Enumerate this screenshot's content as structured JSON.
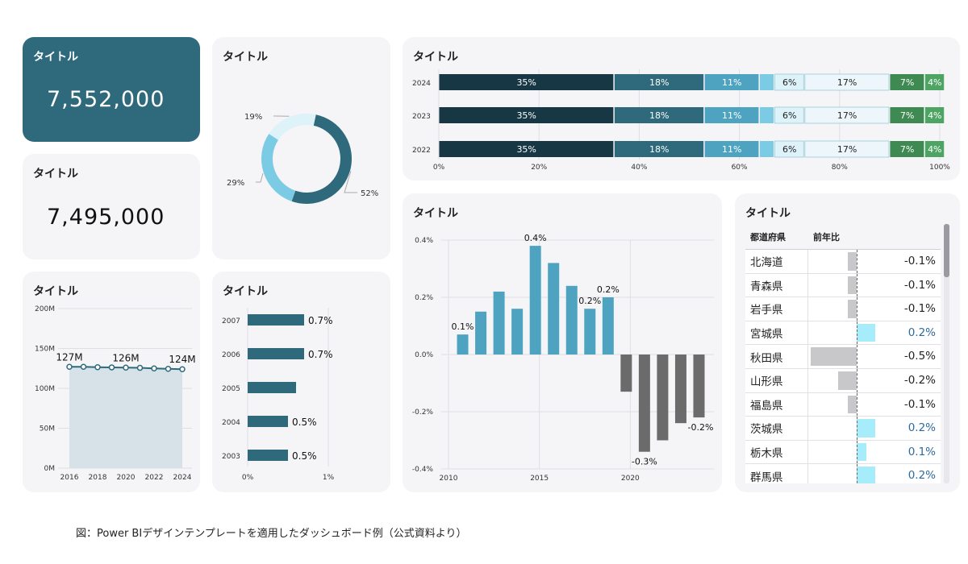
{
  "colors": {
    "dark_teal": "#173744",
    "teal": "#2e6a7c",
    "mid_blue": "#4da3c0",
    "light_blue": "#7ccbe4",
    "pale_blue": "#ddf2f9",
    "pale": "#edf7fb",
    "green": "#3e8a52",
    "green2": "#4ea463",
    "gray_bar": "#6b6b6b",
    "area_fill": "#d7e1e8"
  },
  "kpi1": {
    "title": "タイトル",
    "value": "7,552,000"
  },
  "kpi2": {
    "title": "タイトル",
    "value": "7,495,000"
  },
  "donut": {
    "title": "タイトル",
    "chart_data": {
      "type": "pie",
      "labels": [
        "",
        "",
        ""
      ],
      "values": [
        52,
        29,
        19
      ],
      "value_labels": [
        "52%",
        "29%",
        "19%"
      ]
    }
  },
  "stacked": {
    "title": "タイトル",
    "chart_data": {
      "type": "bar",
      "orientation": "horizontal",
      "stacked": true,
      "categories": [
        "2024",
        "2023",
        "2022"
      ],
      "segments": [
        {
          "value": 35,
          "label": "35%"
        },
        {
          "value": 18,
          "label": "18%"
        },
        {
          "value": 11,
          "label": "11%"
        },
        {
          "value": 3,
          "label": ""
        },
        {
          "value": 6,
          "label": "6%"
        },
        {
          "value": 17,
          "label": "17%"
        },
        {
          "value": 7,
          "label": "7%"
        },
        {
          "value": 4,
          "label": "4%"
        }
      ],
      "x_ticks": [
        "0%",
        "20%",
        "40%",
        "60%",
        "80%",
        "100%"
      ],
      "xlim": [
        0,
        100
      ]
    }
  },
  "area": {
    "title": "タイトル",
    "chart_data": {
      "type": "area",
      "x": [
        2016,
        2017,
        2018,
        2019,
        2020,
        2021,
        2022,
        2023,
        2024
      ],
      "values": [
        127,
        127,
        126.5,
        126.3,
        126,
        125.7,
        125,
        124.5,
        124
      ],
      "ylim": [
        0,
        200
      ],
      "y_ticks": [
        "0M",
        "50M",
        "100M",
        "150M",
        "200M"
      ],
      "x_ticks": [
        "2016",
        "2018",
        "2020",
        "2022",
        "2024"
      ],
      "data_labels": [
        {
          "index": 0,
          "text": "127M"
        },
        {
          "index": 4,
          "text": "126M"
        },
        {
          "index": 8,
          "text": "124M"
        }
      ]
    }
  },
  "hbar": {
    "title": "タイトル",
    "chart_data": {
      "type": "bar",
      "orientation": "horizontal",
      "categories": [
        "2007",
        "2006",
        "2005",
        "2004",
        "2003"
      ],
      "values": [
        0.7,
        0.7,
        0.6,
        0.5,
        0.5
      ],
      "value_labels": [
        "0.7%",
        "0.7%",
        "",
        "0.5%",
        "0.5%"
      ],
      "xlim": [
        0,
        1.5
      ],
      "x_ticks": [
        "0%",
        "1%"
      ]
    }
  },
  "column": {
    "title": "タイトル",
    "chart_data": {
      "type": "bar",
      "x": [
        2011,
        2012,
        2013,
        2014,
        2015,
        2016,
        2017,
        2018,
        2019,
        2020,
        2021,
        2022,
        2023,
        2024
      ],
      "values": [
        0.07,
        0.15,
        0.22,
        0.16,
        0.38,
        0.32,
        0.24,
        0.16,
        0.2,
        -0.13,
        -0.34,
        -0.3,
        -0.24,
        -0.22
      ],
      "value_labels": [
        "0.1%",
        "",
        "",
        "",
        "0.4%",
        "",
        "",
        "0.2%",
        "0.2%",
        "",
        "-0.3%",
        "",
        "",
        "-0.2%"
      ],
      "ylim": [
        -0.4,
        0.4
      ],
      "y_ticks": [
        "-0.4%",
        "-0.2%",
        "0.0%",
        "0.2%",
        "0.4%"
      ],
      "x_ticks": [
        "2010",
        "2015",
        "2020"
      ]
    }
  },
  "table": {
    "title": "タイトル",
    "col1": "都道府県",
    "col2": "前年比",
    "rows": [
      {
        "name": "北海道",
        "value": -0.1,
        "label": "-0.1%"
      },
      {
        "name": "青森県",
        "value": -0.1,
        "label": "-0.1%"
      },
      {
        "name": "岩手県",
        "value": -0.1,
        "label": "-0.1%"
      },
      {
        "name": "宮城県",
        "value": 0.2,
        "label": "0.2%"
      },
      {
        "name": "秋田県",
        "value": -0.5,
        "label": "-0.5%"
      },
      {
        "name": "山形県",
        "value": -0.2,
        "label": "-0.2%"
      },
      {
        "name": "福島県",
        "value": -0.1,
        "label": "-0.1%"
      },
      {
        "name": "茨城県",
        "value": 0.2,
        "label": "0.2%"
      },
      {
        "name": "栃木県",
        "value": 0.1,
        "label": "0.1%"
      },
      {
        "name": "群馬県",
        "value": 0.2,
        "label": "0.2%"
      }
    ]
  },
  "caption": "図：Power BIデザインテンプレートを適用したダッシュボード例（公式資料より）"
}
